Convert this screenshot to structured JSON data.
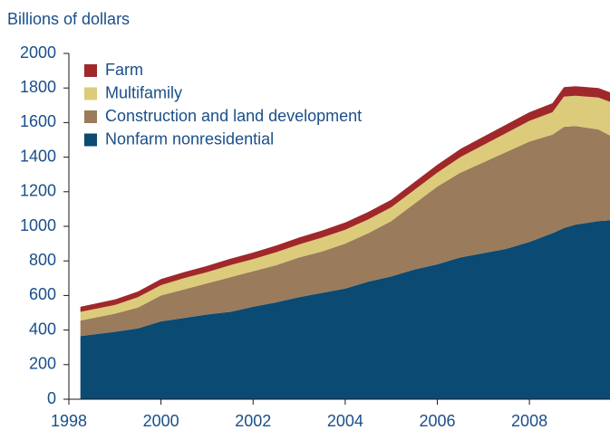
{
  "chart_data": {
    "type": "stacked_area",
    "y_label": "Billions of dollars",
    "x": [
      1998.25,
      1999,
      1999.5,
      2000,
      2000.5,
      2001,
      2001.5,
      2002,
      2002.5,
      2003,
      2003.5,
      2004,
      2004.5,
      2005,
      2005.5,
      2006,
      2006.5,
      2007,
      2007.5,
      2008,
      2008.5,
      2008.75,
      2009,
      2009.5,
      2009.75
    ],
    "series": [
      {
        "name": "Nonfarm nonresidential",
        "color": "#0b4a72",
        "values": [
          365,
          390,
          410,
          450,
          470,
          490,
          505,
          535,
          560,
          590,
          615,
          640,
          680,
          710,
          750,
          780,
          820,
          845,
          870,
          910,
          960,
          990,
          1010,
          1030,
          1035
        ]
      },
      {
        "name": "Construction and land development",
        "color": "#9a7b5c",
        "values": [
          90,
          105,
          120,
          150,
          165,
          180,
          200,
          205,
          215,
          230,
          240,
          260,
          280,
          320,
          380,
          450,
          490,
          525,
          560,
          580,
          570,
          585,
          570,
          530,
          490
        ]
      },
      {
        "name": "Multifamily",
        "color": "#dccb7a",
        "values": [
          50,
          50,
          60,
          60,
          65,
          65,
          70,
          70,
          75,
          75,
          80,
          80,
          80,
          80,
          80,
          80,
          90,
          100,
          110,
          120,
          130,
          175,
          175,
          185,
          195
        ]
      },
      {
        "name": "Farm",
        "color": "#a0282a",
        "values": [
          30,
          32,
          33,
          35,
          35,
          36,
          37,
          38,
          39,
          40,
          41,
          42,
          43,
          44,
          45,
          46,
          47,
          48,
          49,
          50,
          52,
          55,
          55,
          55,
          55
        ]
      }
    ],
    "xlim": [
      1998,
      2009.75
    ],
    "xticks": [
      1998,
      2000,
      2002,
      2004,
      2006,
      2008
    ],
    "ylim": [
      0,
      2000
    ],
    "yticks": [
      0,
      200,
      400,
      600,
      800,
      1000,
      1200,
      1400,
      1600,
      1800,
      2000
    ],
    "legend": "upper left"
  }
}
